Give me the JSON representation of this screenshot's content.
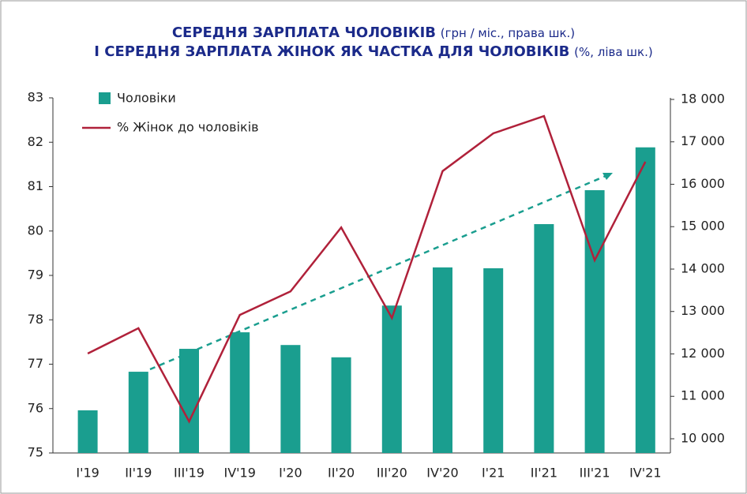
{
  "chart_data": {
    "type": "bar-line",
    "title": [
      {
        "bold": "СЕРЕДНЯ ЗАРПЛАТА ЧОЛОВІКІВ",
        "normal": "(грн / міс., права шк.)"
      },
      {
        "bold": "І СЕРЕДНЯ ЗАРПЛАТА ЖІНОК ЯК ЧАСТКА ДЛЯ ЧОЛОВІКІВ",
        "normal": "(%, ліва шк.)"
      }
    ],
    "categories": [
      "І'19",
      "ІІ'19",
      "ІІІ'19",
      "ІV'19",
      "І'20",
      "ІІ'20",
      "ІІІ'20",
      "ІV'20",
      "І'21",
      "ІІ'21",
      "ІІІ'21",
      "ІV'21"
    ],
    "series": [
      {
        "name": "Чоловіки",
        "type": "bar",
        "axis": "y2",
        "color": "#1a9e8f",
        "values": [
          10670,
          11580,
          12120,
          12510,
          12210,
          11920,
          13140,
          14040,
          14020,
          15060,
          15860,
          16870
        ]
      },
      {
        "name": "% Жінок до чоловіків",
        "type": "line",
        "axis": "y",
        "color": "#b0213a",
        "values": [
          77.24,
          77.81,
          75.71,
          78.11,
          78.64,
          80.08,
          78.04,
          81.35,
          82.2,
          82.59,
          79.34,
          81.56
        ]
      }
    ],
    "ylim": [
      75,
      83
    ],
    "yticks": [
      75,
      76,
      77,
      78,
      79,
      80,
      81,
      82,
      83
    ],
    "y2lim": [
      9665,
      18037
    ],
    "y2ticks": [
      {
        "value": 10000,
        "label": "10 000"
      },
      {
        "value": 11000,
        "label": "11 000"
      },
      {
        "value": 12000,
        "label": "12 000"
      },
      {
        "value": 13000,
        "label": "13 000"
      },
      {
        "value": 14000,
        "label": "14 000"
      },
      {
        "value": 15000,
        "label": "15 000"
      },
      {
        "value": 16000,
        "label": "16 000"
      },
      {
        "value": 17000,
        "label": "17 000"
      },
      {
        "value": 18000,
        "label": "18 000"
      }
    ],
    "legend": "top-left",
    "grid": false
  }
}
